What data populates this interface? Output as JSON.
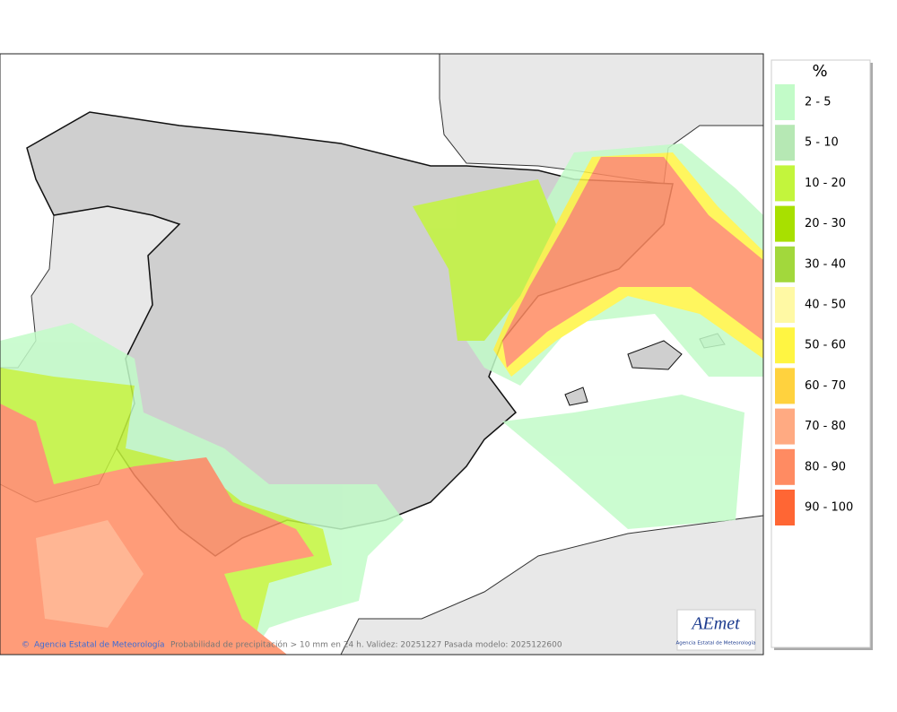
{
  "legend": {
    "title": "%",
    "items": [
      {
        "label": "2 - 5",
        "color": "#c2fbc8"
      },
      {
        "label": "5 - 10",
        "color": "#b6e8b4"
      },
      {
        "label": "10 - 20",
        "color": "#c3f53c"
      },
      {
        "label": "20 - 30",
        "color": "#a8e000"
      },
      {
        "label": "30 - 40",
        "color": "#a2d83c"
      },
      {
        "label": "40 - 50",
        "color": "#fff9a4"
      },
      {
        "label": "50 - 60",
        "color": "#fff542"
      },
      {
        "label": "60 - 70",
        "color": "#ffd23e"
      },
      {
        "label": "70 - 80",
        "color": "#ffaa82"
      },
      {
        "label": "80 - 90",
        "color": "#ff8b62"
      },
      {
        "label": "90 - 100",
        "color": "#ff6634"
      }
    ]
  },
  "footer": {
    "credit": "Agencia Estatal de Meteorología",
    "caption": "Probabilidad de precipitación > 10 mm en 24 h. Validez: 20251227 Pasada modelo: 2025122600"
  },
  "logo": {
    "text": "AEmet",
    "subtitle": "Agencia Estatal de Meteorología"
  }
}
